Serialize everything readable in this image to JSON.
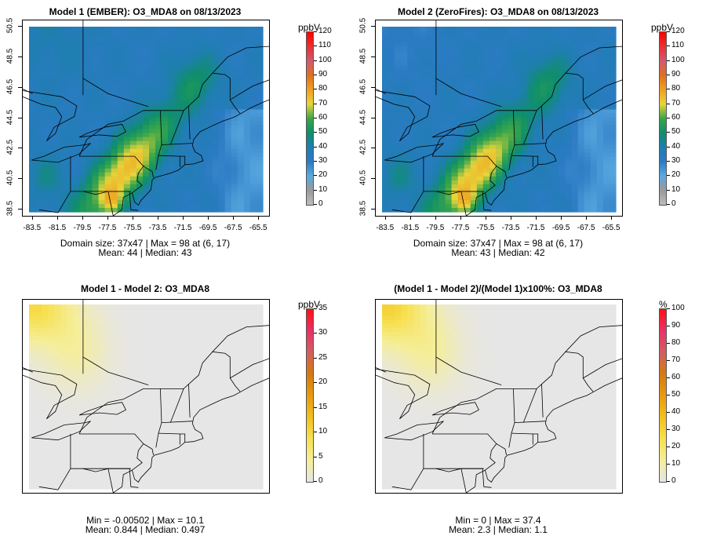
{
  "panels": [
    {
      "title": "Model 1 (EMBER): O3_MDA8 on 08/13/2023",
      "kind": "ozone",
      "stats_line1": "Domain size: 37x47 | Max = 98 at (6, 17)",
      "stats_line2": "Mean: 44 |  Median: 43",
      "colorbar": {
        "unit": "ppbV",
        "ticks": [
          "0",
          "10",
          "20",
          "30",
          "40",
          "50",
          "60",
          "70",
          "80",
          "90",
          "100",
          "110",
          "120"
        ]
      }
    },
    {
      "title": "Model 2 (ZeroFires): O3_MDA8 on 08/13/2023",
      "kind": "ozone",
      "stats_line1": "Domain size: 37x47 | Max = 98 at (6, 17)",
      "stats_line2": "Mean: 43 |  Median: 42",
      "colorbar": {
        "unit": "ppbV",
        "ticks": [
          "0",
          "10",
          "20",
          "30",
          "40",
          "50",
          "60",
          "70",
          "80",
          "90",
          "100",
          "110",
          "120"
        ]
      }
    },
    {
      "title": "Model 1 - Model 2: O3_MDA8",
      "kind": "diff",
      "stats_line1": "Min = -0.00502 | Max = 10.1",
      "stats_line2": "Mean: 0.844 |  Median: 0.497",
      "colorbar": {
        "unit": "ppbV",
        "ticks": [
          "0",
          "5",
          "10",
          "15",
          "20",
          "25",
          "30",
          "35"
        ]
      }
    },
    {
      "title": "(Model 1 - Model 2)/(Model 1)x100%: O3_MDA8",
      "kind": "pct",
      "stats_line1": "Min = 0 | Max = 37.4",
      "stats_line2": "Mean: 2.3 |  Median: 1.1",
      "colorbar": {
        "unit": "%",
        "ticks": [
          "0",
          "10",
          "20",
          "30",
          "40",
          "50",
          "60",
          "70",
          "80",
          "90",
          "100"
        ]
      }
    }
  ],
  "axes": {
    "x_ticks": [
      "-83.5",
      "-81.5",
      "-79.5",
      "-77.5",
      "-75.5",
      "-73.5",
      "-71.5",
      "-69.5",
      "-67.5",
      "-65.5"
    ],
    "y_ticks": [
      "38.5",
      "40.5",
      "42.5",
      "44.5",
      "46.5",
      "48.5",
      "50.5"
    ]
  },
  "colors": {
    "ozone_scale": [
      "#bdbdbd",
      "#9a9a9a",
      "#5aa9e0",
      "#2b7bc4",
      "#1f7eb0",
      "#0f8f6a",
      "#3aa64a",
      "#e8d43a",
      "#f0a020",
      "#e07020",
      "#d05a70",
      "#e83030",
      "#ff0000"
    ],
    "diff_scale": [
      "#e6e6e6",
      "#f5ee9a",
      "#f7e050",
      "#f2c01c",
      "#e89a10",
      "#d47a10",
      "#d06060",
      "#e8306a",
      "#ff1010"
    ]
  },
  "chart_data": [
    {
      "type": "heatmap",
      "title": "Model 1 (EMBER): O3_MDA8 on 08/13/2023",
      "grid_size": [
        37,
        47
      ],
      "x_range": [
        -83.5,
        -65.5
      ],
      "y_range": [
        38.5,
        50.5
      ],
      "colorbar_range": [
        0,
        120
      ],
      "unit": "ppbV",
      "max": 98,
      "max_at": [
        6,
        17
      ],
      "mean": 44,
      "median": 43
    },
    {
      "type": "heatmap",
      "title": "Model 2 (ZeroFires): O3_MDA8 on 08/13/2023",
      "grid_size": [
        37,
        47
      ],
      "x_range": [
        -83.5,
        -65.5
      ],
      "y_range": [
        38.5,
        50.5
      ],
      "colorbar_range": [
        0,
        120
      ],
      "unit": "ppbV",
      "max": 98,
      "max_at": [
        6,
        17
      ],
      "mean": 43,
      "median": 42
    },
    {
      "type": "heatmap",
      "title": "Model 1 - Model 2: O3_MDA8",
      "colorbar_range": [
        0,
        35
      ],
      "unit": "ppbV",
      "min": -0.00502,
      "max": 10.1,
      "mean": 0.844,
      "median": 0.497
    },
    {
      "type": "heatmap",
      "title": "(Model 1 - Model 2)/(Model 1)x100%: O3_MDA8",
      "colorbar_range": [
        0,
        100
      ],
      "unit": "%",
      "min": 0,
      "max": 37.4,
      "mean": 2.3,
      "median": 1.1
    }
  ]
}
